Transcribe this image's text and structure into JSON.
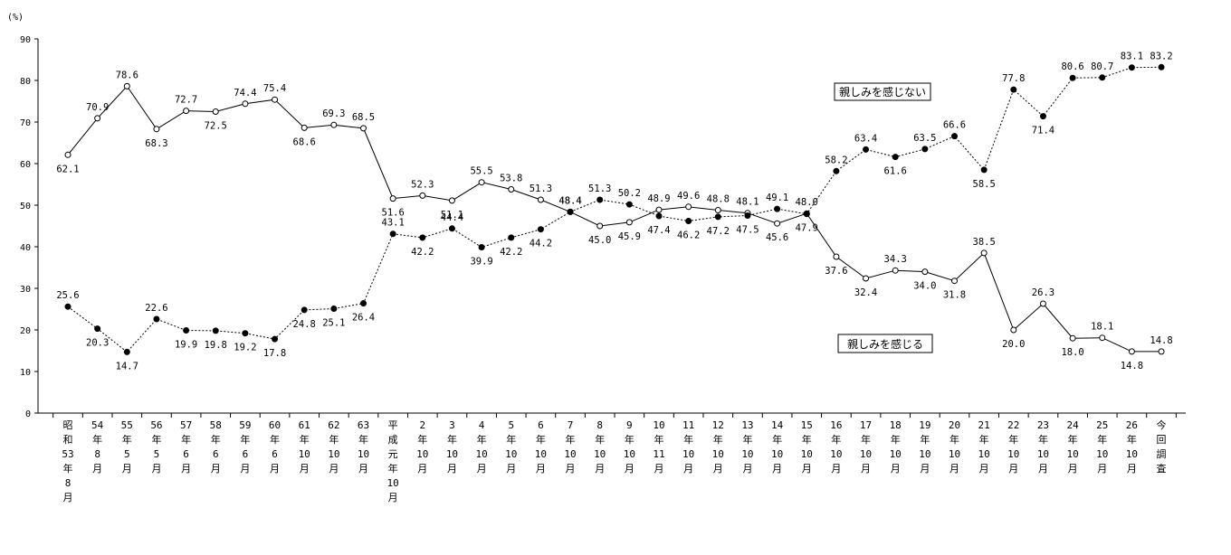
{
  "chart_data": {
    "type": "line",
    "y_unit": "(%)",
    "ylim": [
      0,
      90
    ],
    "y_ticks": [
      "0",
      "10",
      "20",
      "30",
      "40",
      "50",
      "60",
      "70",
      "80",
      "90"
    ],
    "grid": false,
    "categories": [
      "昭和53年8月",
      "54年8月",
      "55年5月",
      "56年5月",
      "57年6月",
      "58年6月",
      "59年6月",
      "60年6月",
      "61年10月",
      "62年10月",
      "63年10月",
      "平成元年10月",
      "2年10月",
      "3年10月",
      "4年10月",
      "5年10月",
      "6年10月",
      "7年10月",
      "8年10月",
      "9年10月",
      "10年11月",
      "11年10月",
      "12年10月",
      "13年10月",
      "14年10月",
      "15年10月",
      "16年10月",
      "17年10月",
      "18年10月",
      "19年10月",
      "20年10月",
      "21年10月",
      "22年10月",
      "23年10月",
      "24年10月",
      "25年10月",
      "26年10月",
      "今回調査"
    ],
    "x_tick_lines": [
      [
        "昭",
        "和",
        "53",
        "年",
        "8",
        "月"
      ],
      [
        "54",
        "年",
        "8",
        "月"
      ],
      [
        "55",
        "年",
        "5",
        "月"
      ],
      [
        "56",
        "年",
        "5",
        "月"
      ],
      [
        "57",
        "年",
        "6",
        "月"
      ],
      [
        "58",
        "年",
        "6",
        "月"
      ],
      [
        "59",
        "年",
        "6",
        "月"
      ],
      [
        "60",
        "年",
        "6",
        "月"
      ],
      [
        "61",
        "年",
        "10",
        "月"
      ],
      [
        "62",
        "年",
        "10",
        "月"
      ],
      [
        "63",
        "年",
        "10",
        "月"
      ],
      [
        "平",
        "成",
        "元",
        "年",
        "10",
        "月"
      ],
      [
        "2",
        "年",
        "10",
        "月"
      ],
      [
        "3",
        "年",
        "10",
        "月"
      ],
      [
        "4",
        "年",
        "10",
        "月"
      ],
      [
        "5",
        "年",
        "10",
        "月"
      ],
      [
        "6",
        "年",
        "10",
        "月"
      ],
      [
        "7",
        "年",
        "10",
        "月"
      ],
      [
        "8",
        "年",
        "10",
        "月"
      ],
      [
        "9",
        "年",
        "10",
        "月"
      ],
      [
        "10",
        "年",
        "11",
        "月"
      ],
      [
        "11",
        "年",
        "10",
        "月"
      ],
      [
        "12",
        "年",
        "10",
        "月"
      ],
      [
        "13",
        "年",
        "10",
        "月"
      ],
      [
        "14",
        "年",
        "10",
        "月"
      ],
      [
        "15",
        "年",
        "10",
        "月"
      ],
      [
        "16",
        "年",
        "10",
        "月"
      ],
      [
        "17",
        "年",
        "10",
        "月"
      ],
      [
        "18",
        "年",
        "10",
        "月"
      ],
      [
        "19",
        "年",
        "10",
        "月"
      ],
      [
        "20",
        "年",
        "10",
        "月"
      ],
      [
        "21",
        "年",
        "10",
        "月"
      ],
      [
        "22",
        "年",
        "10",
        "月"
      ],
      [
        "23",
        "年",
        "10",
        "月"
      ],
      [
        "24",
        "年",
        "10",
        "月"
      ],
      [
        "25",
        "年",
        "10",
        "月"
      ],
      [
        "26",
        "年",
        "10",
        "月"
      ],
      [
        "今",
        "回",
        "調",
        "査"
      ]
    ],
    "series": [
      {
        "name": "親しみを感じない",
        "style": "solid",
        "marker": "open-circle",
        "values": [
          62.1,
          70.9,
          78.6,
          68.3,
          72.7,
          72.5,
          74.4,
          75.4,
          68.6,
          69.3,
          68.5,
          51.6,
          52.3,
          51.1,
          55.5,
          53.8,
          51.3,
          48.4,
          45.0,
          45.9,
          48.9,
          49.6,
          48.8,
          48.1,
          45.6,
          48.0,
          37.6,
          32.4,
          34.3,
          34.0,
          31.8,
          38.5,
          20.0,
          26.3,
          18.0,
          18.1,
          14.8,
          14.8
        ]
      },
      {
        "name": "親しみを感じる",
        "style": "dotted",
        "marker": "filled-circle",
        "values": [
          25.6,
          20.3,
          14.7,
          22.6,
          19.9,
          19.8,
          19.2,
          17.8,
          24.8,
          25.1,
          26.4,
          43.1,
          42.2,
          44.4,
          39.9,
          42.2,
          44.2,
          48.4,
          51.3,
          50.2,
          47.4,
          46.2,
          47.2,
          47.5,
          49.1,
          47.9,
          58.2,
          63.4,
          61.6,
          63.5,
          66.6,
          58.5,
          77.8,
          71.4,
          80.6,
          80.7,
          83.1,
          83.2
        ]
      }
    ],
    "series_label_boxes": [
      {
        "text": "親しみを感じない"
      },
      {
        "text": "親しみを感じる"
      }
    ]
  }
}
